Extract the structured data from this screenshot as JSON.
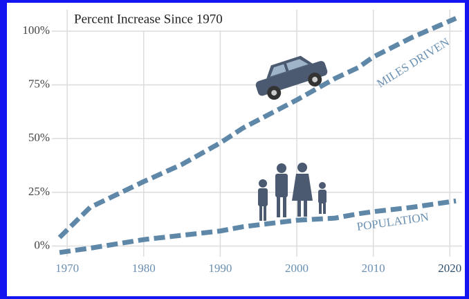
{
  "chart_data": {
    "type": "line",
    "title": "Percent Increase Since 1970",
    "x": [
      1969,
      1973,
      1980,
      1985,
      1990,
      1993,
      2000,
      2005,
      2008,
      2010,
      2015,
      2020.8
    ],
    "series": [
      {
        "name": "MILES DRIVEN",
        "color": "#5f87a8",
        "values": [
          4,
          18,
          30,
          38,
          48,
          55,
          68,
          78,
          83,
          88,
          97,
          106
        ]
      },
      {
        "name": "POPULATION",
        "color": "#5f87a8",
        "values": [
          -3,
          -1,
          3,
          5,
          7,
          9,
          12,
          13,
          15,
          16,
          18,
          21
        ]
      }
    ],
    "xlim": [
      1968,
      2021.6
    ],
    "ylim": [
      -5,
      110
    ],
    "xticks": [
      1970,
      1980,
      1990,
      2000,
      2010,
      2020
    ],
    "yticks": [
      {
        "value": 0,
        "label": "0%"
      },
      {
        "value": 25,
        "label": "25%"
      },
      {
        "value": 50,
        "label": "50%"
      },
      {
        "value": 75,
        "label": "75%"
      },
      {
        "value": 100,
        "label": "100%"
      }
    ],
    "grid": true
  }
}
